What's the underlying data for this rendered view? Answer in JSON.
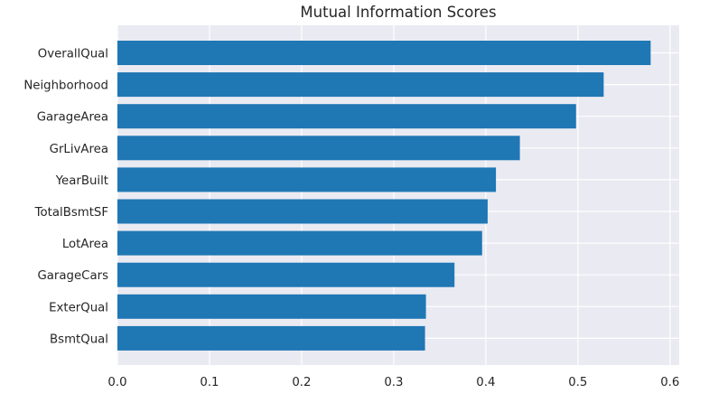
{
  "chart_data": {
    "type": "bar",
    "orientation": "horizontal",
    "title": "Mutual Information Scores",
    "xlabel": "",
    "ylabel": "",
    "categories": [
      "OverallQual",
      "Neighborhood",
      "GarageArea",
      "GrLivArea",
      "YearBuilt",
      "TotalBsmtSF",
      "LotArea",
      "GarageCars",
      "ExterQual",
      "BsmtQual"
    ],
    "values": [
      0.579,
      0.528,
      0.498,
      0.437,
      0.411,
      0.402,
      0.396,
      0.366,
      0.335,
      0.334
    ],
    "xlim": [
      0,
      0.61
    ],
    "xticks": [
      0.0,
      0.1,
      0.2,
      0.3,
      0.4,
      0.5,
      0.6
    ],
    "xtick_labels": [
      "0.0",
      "0.1",
      "0.2",
      "0.3",
      "0.4",
      "0.5",
      "0.6"
    ],
    "grid": true,
    "colors": {
      "bar": "#1f77b4",
      "plot_background": "#eaeaf2",
      "grid": "#ffffff",
      "text": "#262626"
    }
  }
}
